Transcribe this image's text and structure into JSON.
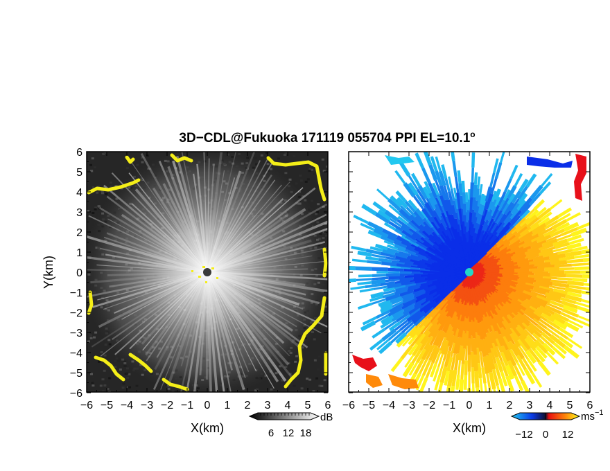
{
  "title": "3D−CDL@Fukuoka 171119 055704 PPI EL=10.1",
  "title_degree": "o",
  "axes": {
    "x_label": "X(km)",
    "y_label": "Y(km)",
    "ticks": [
      -6,
      -5,
      -4,
      -3,
      -2,
      -1,
      0,
      1,
      2,
      3,
      4,
      5,
      6
    ],
    "tick_labels": [
      "−6",
      "−5",
      "−4",
      "−3",
      "−2",
      "−1",
      "0",
      "1",
      "2",
      "3",
      "4",
      "5",
      "6"
    ],
    "range_km": [
      -6,
      6
    ]
  },
  "left_panel": {
    "quantity": "snr",
    "colormap": "grayscale",
    "clutter_color": "#f4ee18",
    "colorbar": {
      "unit": "dB",
      "labels": [
        "6",
        "12",
        "18"
      ],
      "values": [
        6,
        12,
        18
      ]
    }
  },
  "right_panel": {
    "quantity": "doppler velocity",
    "colormap": "blue-cyan-red-yellow",
    "colorbar": {
      "unit": "ms",
      "unit_exp": "−1",
      "labels": [
        "−12",
        "0",
        "12"
      ],
      "values": [
        -12,
        0,
        12
      ]
    }
  },
  "colors": {
    "blue": "#0a2ee8",
    "cyan": "#22c8f0",
    "red": "#e8101a",
    "orange": "#ff8a0a",
    "yellow": "#ffff1e",
    "radar_center": "#3a3a3a",
    "radar_center_right": "#22d8c8"
  }
}
